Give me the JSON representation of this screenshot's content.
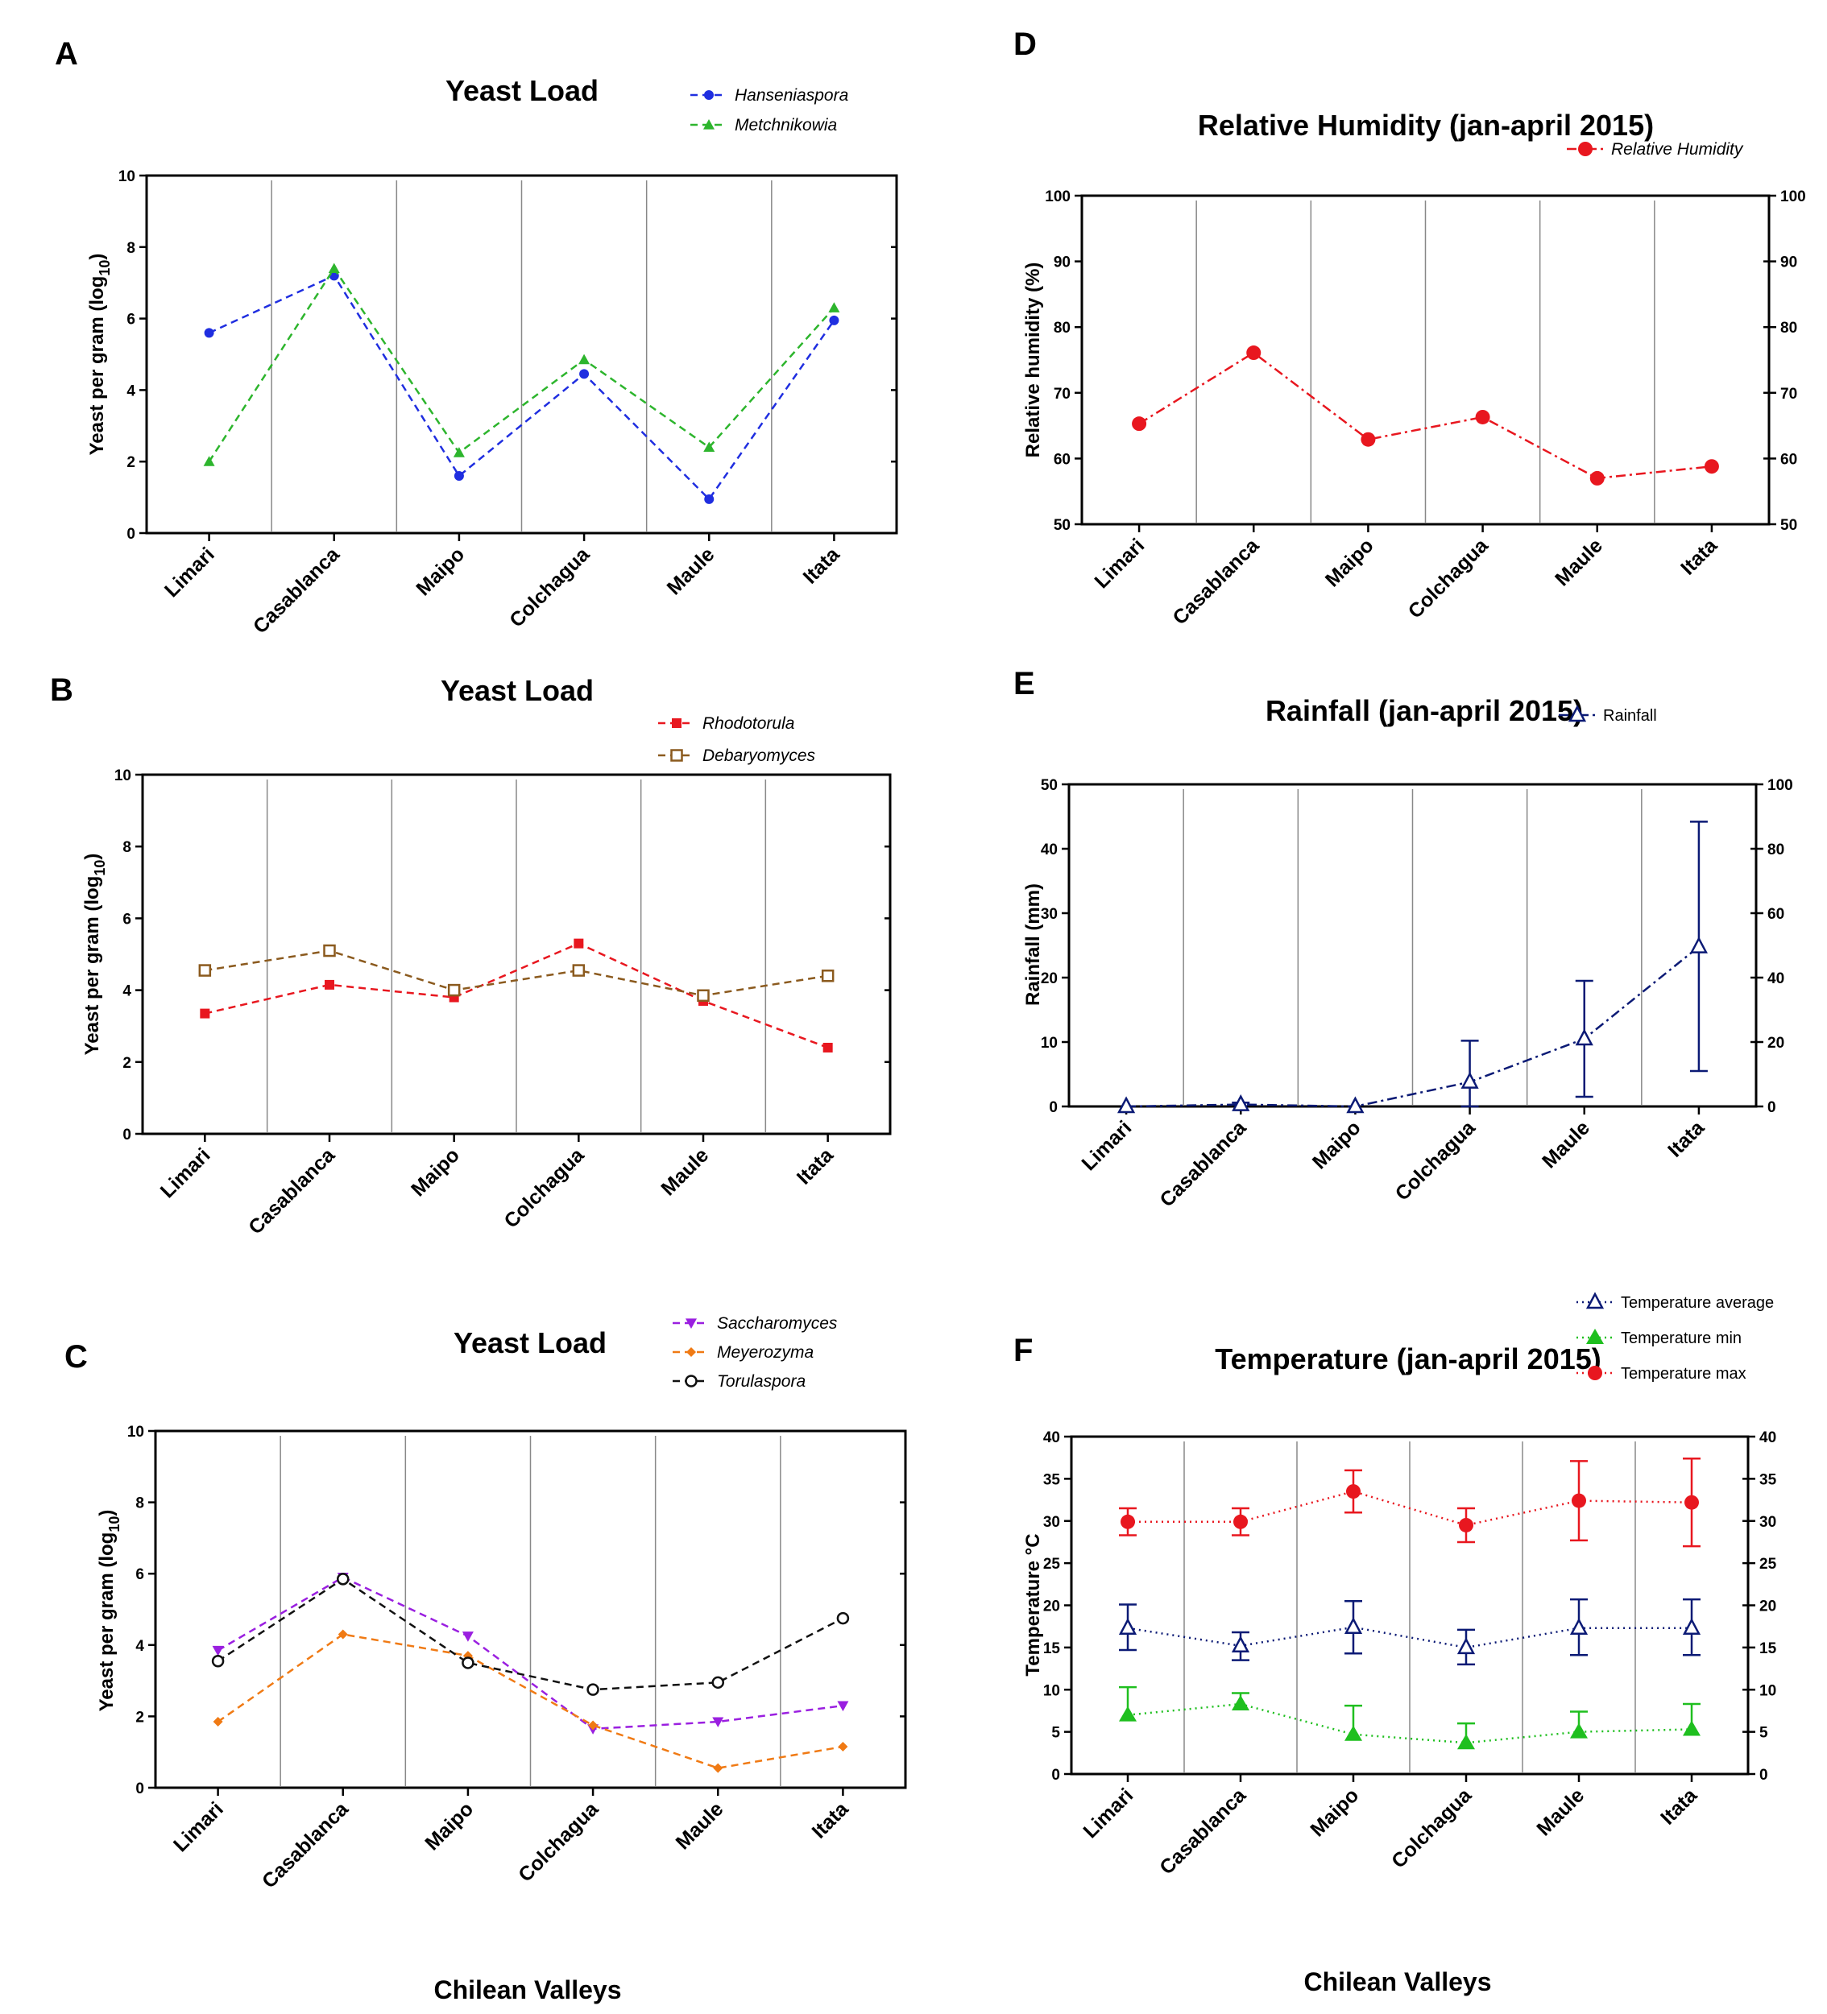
{
  "figure": {
    "xaxis_title": "Chilean Valleys"
  },
  "colors": {
    "blue": "#1f2ee0",
    "green": "#2db52d",
    "red": "#e8171f",
    "brown": "#8b5a1e",
    "purple": "#9a1fe0",
    "orange": "#f07a14",
    "black": "#111111",
    "navy": "#0b1a75",
    "tgreen": "#1fbf1f"
  },
  "chart_data": [
    {
      "id": "A",
      "letter": "A",
      "type": "line",
      "title": "Yeast Load",
      "ylabel": "Yeast per gram (log10)",
      "ylim": [
        0,
        10
      ],
      "yticks": [
        0,
        2,
        4,
        6,
        8,
        10
      ],
      "categories": [
        "Limari",
        "Casablanca",
        "Maipo",
        "Colchagua",
        "Maule",
        "Itata"
      ],
      "series": [
        {
          "name": "Hanseniaspora",
          "color": "blue",
          "marker": "circle",
          "dash": "dashed",
          "values": [
            5.6,
            7.2,
            1.6,
            4.45,
            0.95,
            5.95
          ]
        },
        {
          "name": "Metchnikowia",
          "color": "green",
          "marker": "triangle-up",
          "dash": "dashed",
          "values": [
            2.0,
            7.4,
            2.25,
            4.85,
            2.4,
            6.3
          ]
        }
      ]
    },
    {
      "id": "B",
      "letter": "B",
      "type": "line",
      "title": "Yeast Load",
      "ylabel": "Yeast per gram (log10)",
      "ylim": [
        0,
        10
      ],
      "yticks": [
        0,
        2,
        4,
        6,
        8,
        10
      ],
      "categories": [
        "Limari",
        "Casablanca",
        "Maipo",
        "Colchagua",
        "Maule",
        "Itata"
      ],
      "series": [
        {
          "name": "Rhodotorula",
          "color": "red",
          "marker": "square",
          "dash": "dashed",
          "values": [
            3.35,
            4.15,
            3.8,
            5.3,
            3.7,
            2.4
          ]
        },
        {
          "name": "Debaryomyces",
          "color": "brown",
          "marker": "square-open",
          "dash": "dashed",
          "values": [
            4.55,
            5.1,
            4.0,
            4.55,
            3.85,
            4.4
          ]
        }
      ]
    },
    {
      "id": "C",
      "letter": "C",
      "type": "line",
      "title": "Yeast Load",
      "ylabel": "Yeast per gram (log10)",
      "ylim": [
        0,
        10
      ],
      "yticks": [
        0,
        2,
        4,
        6,
        8,
        10
      ],
      "categories": [
        "Limari",
        "Casablanca",
        "Maipo",
        "Colchagua",
        "Maule",
        "Itata"
      ],
      "series": [
        {
          "name": "Saccharomyces",
          "color": "purple",
          "marker": "triangle-down",
          "dash": "dashed",
          "values": [
            3.85,
            5.9,
            4.25,
            1.65,
            1.85,
            2.3
          ]
        },
        {
          "name": "Meyerozyma",
          "color": "orange",
          "marker": "diamond",
          "dash": "dashed",
          "values": [
            1.85,
            4.3,
            3.7,
            1.75,
            0.55,
            1.15
          ]
        },
        {
          "name": "Torulaspora",
          "color": "black",
          "marker": "circle-open",
          "dash": "dashed",
          "values": [
            3.55,
            5.85,
            3.5,
            2.75,
            2.95,
            4.75
          ]
        }
      ]
    },
    {
      "id": "D",
      "letter": "D",
      "type": "line",
      "title": "Relative Humidity (jan-april 2015)",
      "ylabel": "Relative humidity (%)",
      "ylim": [
        50,
        100
      ],
      "yticks": [
        50,
        60,
        70,
        80,
        90,
        100
      ],
      "right_yticks": [
        50,
        60,
        70,
        80,
        90,
        100
      ],
      "categories": [
        "Limari",
        "Casablanca",
        "Maipo",
        "Colchagua",
        "Maule",
        "Itata"
      ],
      "series": [
        {
          "name": "Relative Humidity",
          "color": "red",
          "marker": "circle-big",
          "dash": "dashdot",
          "values": [
            65.3,
            76.1,
            62.9,
            66.3,
            57.0,
            58.8
          ]
        }
      ]
    },
    {
      "id": "E",
      "letter": "E",
      "type": "line",
      "title": "Rainfall (jan-april 2015)",
      "ylabel": "Rainfall (mm)",
      "ylim": [
        0,
        50
      ],
      "yticks": [
        0,
        10,
        20,
        30,
        40,
        50
      ],
      "right_yticks": [
        0,
        20,
        40,
        60,
        80,
        100
      ],
      "categories": [
        "Limari",
        "Casablanca",
        "Maipo",
        "Colchagua",
        "Maule",
        "Itata"
      ],
      "series": [
        {
          "name": "Rainfall",
          "color": "navy",
          "marker": "triangle-open",
          "dash": "dashdot",
          "values": [
            0,
            0.3,
            0,
            3.8,
            10.5,
            24.8
          ],
          "err_low": [
            0,
            0,
            0,
            0,
            1.5,
            5.5
          ],
          "err_high": [
            0,
            0.6,
            0,
            10.2,
            19.5,
            44.2
          ]
        }
      ]
    },
    {
      "id": "F",
      "letter": "F",
      "type": "line",
      "title": "Temperature (jan-april 2015)",
      "ylabel": "Temperature °C",
      "ylim": [
        0,
        40
      ],
      "yticks": [
        0,
        5,
        10,
        15,
        20,
        25,
        30,
        35,
        40
      ],
      "right_yticks": [
        0,
        5,
        10,
        15,
        20,
        25,
        30,
        35,
        40
      ],
      "categories": [
        "Limari",
        "Casablanca",
        "Maipo",
        "Colchagua",
        "Maule",
        "Itata"
      ],
      "series": [
        {
          "name": "Temperature average",
          "color": "navy",
          "marker": "triangle-open",
          "dash": "dotted",
          "values": [
            17.3,
            15.2,
            17.4,
            15.0,
            17.3,
            17.3
          ],
          "err_low": [
            14.7,
            13.5,
            14.3,
            13.0,
            14.1,
            14.1
          ],
          "err_high": [
            20.1,
            16.8,
            20.5,
            17.1,
            20.7,
            20.7
          ]
        },
        {
          "name": "Temperature min",
          "color": "tgreen",
          "marker": "triangle-filled",
          "dash": "dotted",
          "values": [
            7.0,
            8.3,
            4.7,
            3.7,
            5.0,
            5.3
          ],
          "err_low": [
            7.0,
            8.3,
            4.7,
            3.7,
            5.0,
            5.3
          ],
          "err_high": [
            10.3,
            9.6,
            8.1,
            6.0,
            7.4,
            8.3
          ]
        },
        {
          "name": "Temperature max",
          "color": "red",
          "marker": "circle-big",
          "dash": "dotted",
          "values": [
            29.9,
            29.9,
            33.5,
            29.5,
            32.4,
            32.2
          ],
          "err_low": [
            28.3,
            28.3,
            31.0,
            27.5,
            27.7,
            27.0
          ],
          "err_high": [
            31.5,
            31.5,
            36.0,
            31.5,
            37.1,
            37.4
          ]
        }
      ]
    }
  ]
}
